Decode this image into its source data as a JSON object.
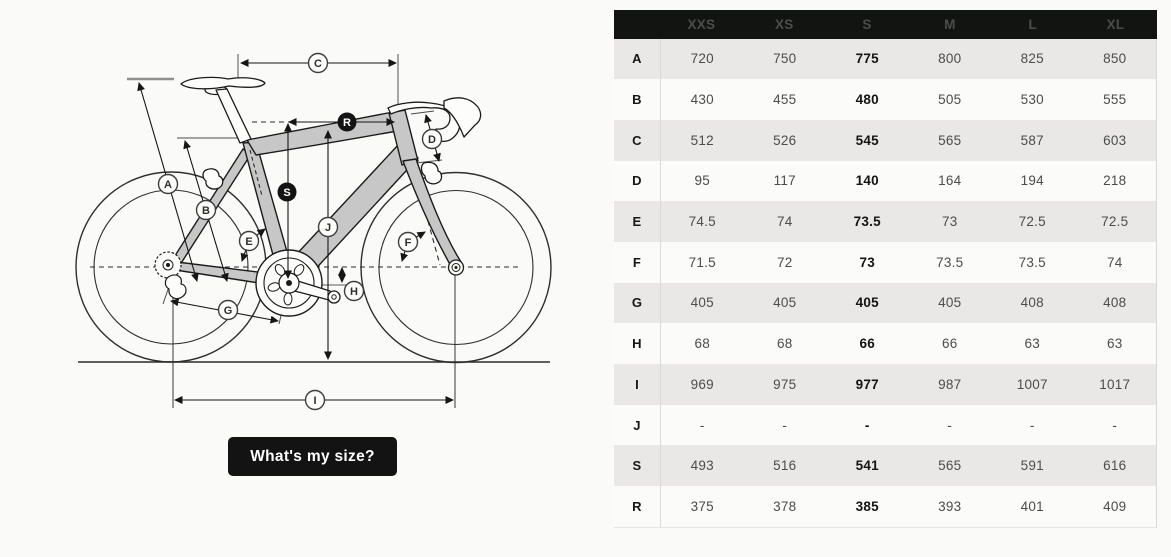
{
  "diagram": {
    "markers": [
      "A",
      "B",
      "C",
      "D",
      "E",
      "F",
      "G",
      "H",
      "I",
      "J",
      "S",
      "R"
    ]
  },
  "size_button": {
    "label": "What's my size?"
  },
  "table": {
    "columns": [
      "XXS",
      "XS",
      "S",
      "M",
      "L",
      "XL"
    ],
    "highlighted_column": "S",
    "rows": [
      {
        "label": "A",
        "values": [
          "720",
          "750",
          "775",
          "800",
          "825",
          "850"
        ]
      },
      {
        "label": "B",
        "values": [
          "430",
          "455",
          "480",
          "505",
          "530",
          "555"
        ]
      },
      {
        "label": "C",
        "values": [
          "512",
          "526",
          "545",
          "565",
          "587",
          "603"
        ]
      },
      {
        "label": "D",
        "values": [
          "95",
          "117",
          "140",
          "164",
          "194",
          "218"
        ]
      },
      {
        "label": "E",
        "values": [
          "74.5",
          "74",
          "73.5",
          "73",
          "72.5",
          "72.5"
        ]
      },
      {
        "label": "F",
        "values": [
          "71.5",
          "72",
          "73",
          "73.5",
          "73.5",
          "74"
        ]
      },
      {
        "label": "G",
        "values": [
          "405",
          "405",
          "405",
          "405",
          "408",
          "408"
        ]
      },
      {
        "label": "H",
        "values": [
          "68",
          "68",
          "66",
          "66",
          "63",
          "63"
        ]
      },
      {
        "label": "I",
        "values": [
          "969",
          "975",
          "977",
          "987",
          "1007",
          "1017"
        ]
      },
      {
        "label": "J",
        "values": [
          "-",
          "-",
          "-",
          "-",
          "-",
          "-"
        ]
      },
      {
        "label": "S",
        "values": [
          "493",
          "516",
          "541",
          "565",
          "591",
          "616"
        ]
      },
      {
        "label": "R",
        "values": [
          "375",
          "378",
          "385",
          "393",
          "401",
          "409"
        ]
      }
    ]
  },
  "colors": {
    "background": "#fafaf9",
    "table_header_bg": "#121412",
    "table_stripe": "#e9e8e6",
    "button_bg": "#131313",
    "frame_fill": "#c7c7c7",
    "line": "#161616"
  }
}
